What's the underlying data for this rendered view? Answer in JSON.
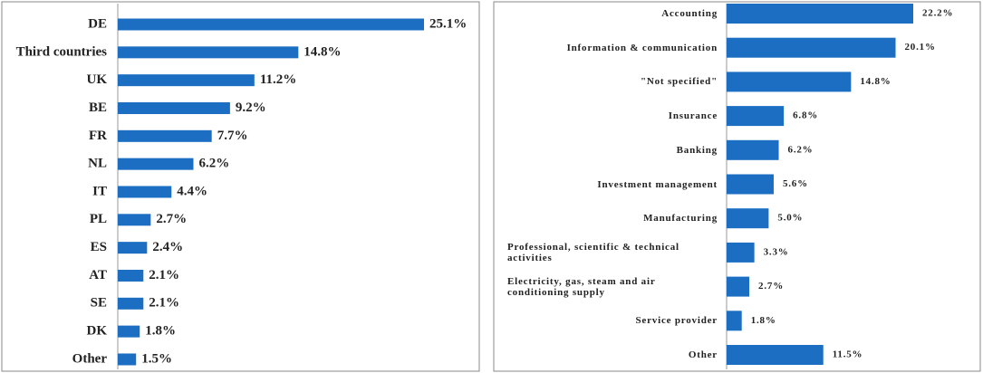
{
  "chart_data": [
    {
      "type": "bar",
      "orientation": "horizontal",
      "color": "#1b6ec2",
      "categories": [
        "DE",
        "Third countries",
        "UK",
        "BE",
        "FR",
        "NL",
        "IT",
        "PL",
        "ES",
        "AT",
        "SE",
        "DK",
        "Other"
      ],
      "values": [
        25.1,
        14.8,
        11.2,
        9.2,
        7.7,
        6.2,
        4.4,
        2.7,
        2.4,
        2.1,
        2.1,
        1.8,
        1.5
      ],
      "value_labels": [
        "25.1%",
        "14.8%",
        "11.2%",
        "9.2%",
        "7.7%",
        "6.2%",
        "4.4%",
        "2.7%",
        "2.4%",
        "2.1%",
        "2.1%",
        "1.8%",
        "1.5%"
      ]
    },
    {
      "type": "bar",
      "orientation": "horizontal",
      "color": "#1b6ec2",
      "categories": [
        "Accounting",
        "Information & communication",
        "\"Not specified\"",
        "Insurance",
        "Banking",
        "Investment management",
        "Manufacturing",
        "Professional, scientific & technical activities",
        "Electricity, gas, steam and air conditioning supply",
        "Service provider",
        "Other"
      ],
      "values": [
        22.2,
        20.1,
        14.8,
        6.8,
        6.2,
        5.6,
        5.0,
        3.3,
        2.7,
        1.8,
        11.5
      ],
      "value_labels": [
        "22.2%",
        "20.1%",
        "14.8%",
        "6.8%",
        "6.2%",
        "5.6%",
        "5.0%",
        "3.3%",
        "2.7%",
        "1.8%",
        "11.5%"
      ]
    }
  ]
}
